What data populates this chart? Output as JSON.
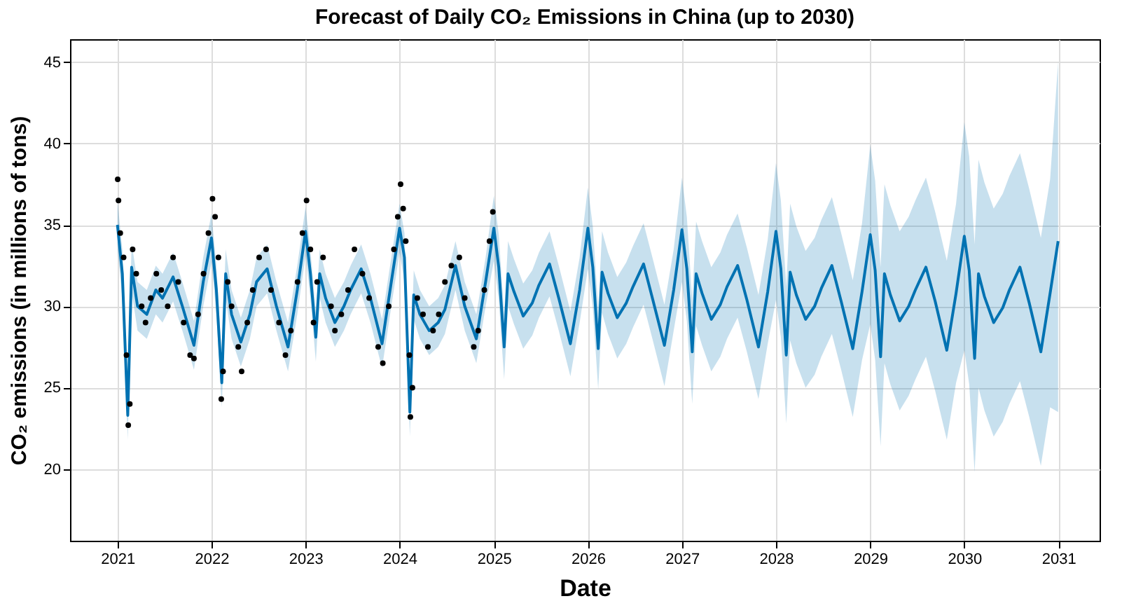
{
  "chart_data": {
    "type": "line",
    "title": "Forecast of Daily CO₂ Emissions in China (up to 2030)",
    "xlabel": "Date",
    "ylabel": "CO₂ emissions (in millions of tons)",
    "xlim": [
      "2020-07-01",
      "2031-06-10"
    ],
    "xticks": [
      "2021",
      "2022",
      "2023",
      "2024",
      "2025",
      "2026",
      "2027",
      "2028",
      "2029",
      "2030",
      "2031"
    ],
    "ylim": [
      15.6,
      46.4
    ],
    "yticks": [
      20,
      25,
      30,
      35,
      40,
      45
    ],
    "grid": true,
    "series": [
      {
        "color": "#0072b2",
        "line_style": "solid",
        "x": [
          "2021-01-01",
          "2021-01-20",
          "2021-02-10",
          "2021-02-25",
          "2021-03-20",
          "2021-04-25",
          "2021-05-30",
          "2021-06-25",
          "2021-08-05",
          "2021-09-10",
          "2021-10-25",
          "2021-11-30",
          "2022-01-01",
          "2022-01-20",
          "2022-02-10",
          "2022-02-25",
          "2022-03-20",
          "2022-04-25",
          "2022-05-30",
          "2022-06-25",
          "2022-08-05",
          "2022-09-10",
          "2022-10-25",
          "2022-11-30",
          "2023-01-01",
          "2023-01-20",
          "2023-02-10",
          "2023-02-25",
          "2023-03-20",
          "2023-04-25",
          "2023-05-30",
          "2023-06-25",
          "2023-08-05",
          "2023-09-10",
          "2023-10-25",
          "2023-11-30",
          "2024-01-01",
          "2024-01-20",
          "2024-02-10",
          "2024-02-25",
          "2024-03-20",
          "2024-04-25",
          "2024-05-30",
          "2024-06-25",
          "2024-08-05",
          "2024-09-10",
          "2024-10-25",
          "2024-11-30",
          "2025-01-01",
          "2025-01-20",
          "2025-02-10",
          "2025-02-25",
          "2025-03-20",
          "2025-04-25",
          "2025-05-30",
          "2025-06-25",
          "2025-08-05",
          "2025-09-10",
          "2025-10-25",
          "2025-11-30",
          "2026-01-01",
          "2026-01-20",
          "2026-02-10",
          "2026-02-25",
          "2026-03-20",
          "2026-04-25",
          "2026-05-30",
          "2026-06-25",
          "2026-08-05",
          "2026-09-10",
          "2026-10-25",
          "2026-11-30",
          "2027-01-01",
          "2027-01-20",
          "2027-02-10",
          "2027-02-25",
          "2027-03-20",
          "2027-04-25",
          "2027-05-30",
          "2027-06-25",
          "2027-08-05",
          "2027-09-10",
          "2027-10-25",
          "2027-11-30",
          "2028-01-01",
          "2028-01-20",
          "2028-02-10",
          "2028-02-25",
          "2028-03-20",
          "2028-04-25",
          "2028-05-30",
          "2028-06-25",
          "2028-08-05",
          "2028-09-10",
          "2028-10-25",
          "2028-11-30",
          "2029-01-01",
          "2029-01-20",
          "2029-02-10",
          "2029-02-25",
          "2029-03-20",
          "2029-04-25",
          "2029-05-30",
          "2029-06-25",
          "2029-08-05",
          "2029-09-10",
          "2029-10-25",
          "2029-11-30",
          "2030-01-01",
          "2030-01-20",
          "2030-02-10",
          "2030-02-25",
          "2030-03-20",
          "2030-04-25",
          "2030-05-30",
          "2030-06-25",
          "2030-08-05",
          "2030-09-10",
          "2030-10-25",
          "2030-11-30",
          "2030-12-31"
        ],
        "values": [
          35.0,
          32.0,
          23.3,
          32.4,
          30.0,
          29.5,
          31.0,
          30.5,
          31.8,
          30.0,
          27.6,
          31.5,
          34.2,
          31.0,
          25.3,
          32.0,
          29.5,
          27.8,
          29.5,
          31.5,
          32.3,
          30.0,
          27.5,
          31.0,
          34.6,
          32.0,
          28.1,
          32.0,
          30.5,
          29.0,
          30.0,
          31.0,
          32.3,
          30.5,
          27.7,
          31.5,
          34.8,
          33.0,
          23.5,
          30.7,
          29.5,
          28.5,
          29.0,
          29.8,
          32.5,
          30.0,
          28.0,
          31.5,
          34.8,
          32.4,
          27.5,
          32.0,
          30.9,
          29.4,
          30.2,
          31.3,
          32.6,
          30.5,
          27.7,
          31.0,
          34.8,
          32.4,
          27.4,
          32.1,
          30.8,
          29.3,
          30.2,
          31.2,
          32.6,
          30.4,
          27.6,
          31.0,
          34.7,
          32.3,
          27.2,
          32.0,
          30.8,
          29.2,
          30.1,
          31.2,
          32.5,
          30.4,
          27.5,
          30.9,
          34.6,
          32.3,
          27.0,
          32.1,
          30.7,
          29.2,
          30.0,
          31.1,
          32.5,
          30.3,
          27.4,
          30.9,
          34.4,
          32.2,
          26.9,
          32.0,
          30.7,
          29.1,
          30.0,
          31.0,
          32.4,
          30.3,
          27.3,
          30.8,
          34.3,
          32.2,
          26.8,
          32.0,
          30.6,
          29.0,
          29.9,
          31.0,
          32.4,
          30.2,
          27.2,
          30.8,
          34.0
        ],
        "lower": [
          33.5,
          30.5,
          21.8,
          30.9,
          28.5,
          28.0,
          29.5,
          29.0,
          30.3,
          28.5,
          26.1,
          30.0,
          32.7,
          29.5,
          23.8,
          30.5,
          28.0,
          26.3,
          28.0,
          30.0,
          30.8,
          28.5,
          26.0,
          29.5,
          33.1,
          30.5,
          26.6,
          30.5,
          29.0,
          27.5,
          28.5,
          29.5,
          30.8,
          29.0,
          26.2,
          30.0,
          33.3,
          31.5,
          22.0,
          29.2,
          28.0,
          27.0,
          27.5,
          28.3,
          31.0,
          28.5,
          26.5,
          30.0,
          32.8,
          30.4,
          25.5,
          30.0,
          28.9,
          27.4,
          28.2,
          29.3,
          30.6,
          28.5,
          25.7,
          29.0,
          32.3,
          29.9,
          24.9,
          29.6,
          28.3,
          26.8,
          27.7,
          28.7,
          30.1,
          27.9,
          25.1,
          28.5,
          31.5,
          29.1,
          24.0,
          28.8,
          27.6,
          26.0,
          26.9,
          28.0,
          29.3,
          27.2,
          24.3,
          27.7,
          30.4,
          28.1,
          22.8,
          27.9,
          26.5,
          25.0,
          25.8,
          26.9,
          28.3,
          26.1,
          23.2,
          26.7,
          28.9,
          26.7,
          21.4,
          26.5,
          25.2,
          23.6,
          24.5,
          25.5,
          26.9,
          24.8,
          21.8,
          25.3,
          27.3,
          25.2,
          19.8,
          25.0,
          23.6,
          22.0,
          22.9,
          24.0,
          25.4,
          23.2,
          20.2,
          23.8,
          23.5
        ],
        "upper": [
          36.5,
          33.5,
          24.8,
          33.9,
          31.5,
          31.0,
          32.5,
          32.0,
          33.3,
          31.5,
          29.1,
          33.0,
          35.7,
          32.5,
          26.8,
          33.5,
          31.0,
          29.3,
          31.0,
          33.0,
          33.8,
          31.5,
          29.0,
          32.5,
          36.1,
          33.5,
          29.6,
          33.5,
          32.0,
          30.5,
          31.5,
          32.5,
          33.8,
          32.0,
          29.2,
          33.0,
          36.3,
          34.5,
          25.0,
          32.2,
          31.0,
          30.0,
          30.5,
          31.3,
          34.0,
          31.5,
          29.5,
          33.0,
          36.8,
          34.4,
          29.5,
          34.0,
          32.9,
          31.4,
          32.2,
          33.3,
          34.6,
          32.5,
          29.7,
          33.0,
          37.3,
          34.9,
          29.9,
          34.6,
          33.3,
          31.8,
          32.7,
          33.7,
          35.1,
          32.9,
          30.1,
          33.5,
          37.9,
          35.5,
          30.4,
          35.2,
          34.0,
          32.4,
          33.3,
          34.4,
          35.7,
          33.6,
          30.7,
          34.1,
          38.8,
          36.5,
          31.2,
          36.3,
          34.9,
          33.4,
          34.2,
          35.3,
          36.7,
          34.5,
          31.6,
          35.1,
          39.9,
          37.7,
          32.4,
          37.5,
          36.2,
          34.6,
          35.5,
          36.5,
          37.9,
          35.8,
          32.8,
          36.3,
          41.3,
          39.2,
          33.8,
          39.0,
          37.6,
          36.0,
          36.9,
          38.0,
          39.4,
          37.2,
          34.2,
          37.8,
          45.0
        ]
      },
      {
        "type": "scatter",
        "color": "#000000",
        "marker": "circle",
        "x": [
          "2021-01-02",
          "2021-01-05",
          "2021-01-12",
          "2021-01-25",
          "2021-02-05",
          "2021-02-12",
          "2021-02-18",
          "2021-03-01",
          "2021-03-15",
          "2021-04-05",
          "2021-04-20",
          "2021-05-10",
          "2021-06-01",
          "2021-06-20",
          "2021-07-15",
          "2021-08-05",
          "2021-08-25",
          "2021-09-15",
          "2021-10-10",
          "2021-10-25",
          "2021-11-10",
          "2021-12-01",
          "2021-12-20",
          "2022-01-05",
          "2022-01-15",
          "2022-01-28",
          "2022-02-08",
          "2022-02-15",
          "2022-03-05",
          "2022-03-20",
          "2022-04-15",
          "2022-04-28",
          "2022-05-20",
          "2022-06-10",
          "2022-07-05",
          "2022-08-01",
          "2022-08-20",
          "2022-09-20",
          "2022-10-15",
          "2022-11-05",
          "2022-12-01",
          "2022-12-20",
          "2023-01-05",
          "2023-01-20",
          "2023-02-01",
          "2023-02-15",
          "2023-03-10",
          "2023-04-10",
          "2023-04-25",
          "2023-05-20",
          "2023-06-15",
          "2023-07-10",
          "2023-08-10",
          "2023-09-05",
          "2023-10-10",
          "2023-10-28",
          "2023-11-20",
          "2023-12-10",
          "2023-12-25",
          "2024-01-05",
          "2024-01-15",
          "2024-01-25",
          "2024-02-08",
          "2024-02-12",
          "2024-02-20",
          "2024-03-10",
          "2024-04-01",
          "2024-04-20",
          "2024-05-10",
          "2024-06-01",
          "2024-06-25",
          "2024-07-20",
          "2024-08-20",
          "2024-09-10",
          "2024-10-15",
          "2024-11-01",
          "2024-11-25",
          "2024-12-15",
          "2024-12-28"
        ],
        "values": [
          37.8,
          36.5,
          34.5,
          33.0,
          27.0,
          22.7,
          24.0,
          33.5,
          32.0,
          30.0,
          29.0,
          30.5,
          32.0,
          31.0,
          30.0,
          33.0,
          31.5,
          29.0,
          27.0,
          26.8,
          29.5,
          32.0,
          34.5,
          36.6,
          35.5,
          33.0,
          24.3,
          26.0,
          31.5,
          30.0,
          27.5,
          26.0,
          29.0,
          31.0,
          33.0,
          33.5,
          31.0,
          29.0,
          27.0,
          28.5,
          31.5,
          34.5,
          36.5,
          33.5,
          29.0,
          31.5,
          33.0,
          30.0,
          28.5,
          29.5,
          31.0,
          33.5,
          32.0,
          30.5,
          27.5,
          26.5,
          30.0,
          33.5,
          35.5,
          37.5,
          36.0,
          34.0,
          27.0,
          23.2,
          25.0,
          30.5,
          29.5,
          27.5,
          28.5,
          29.5,
          31.5,
          32.5,
          33.0,
          30.5,
          27.5,
          28.5,
          31.0,
          34.0,
          35.8
        ]
      }
    ]
  }
}
